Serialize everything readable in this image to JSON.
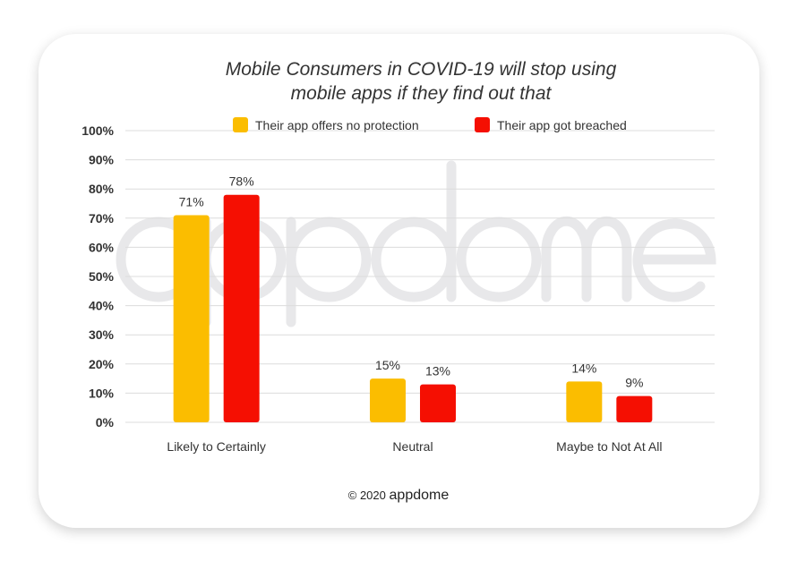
{
  "chart_data": {
    "type": "bar",
    "title_lines": [
      "Mobile Consumers in COVID-19 will stop using",
      "mobile apps if they find out that"
    ],
    "categories": [
      "Likely to Certainly",
      "Neutral",
      "Maybe to Not At All"
    ],
    "series": [
      {
        "name": "Their app offers no protection",
        "color": "#FBBD00",
        "values": [
          71,
          15,
          14
        ]
      },
      {
        "name": "Their app got breached",
        "color": "#F50F02",
        "values": [
          78,
          13,
          9
        ]
      }
    ],
    "data_labels": [
      [
        "71%",
        "15%",
        "14%"
      ],
      [
        "78%",
        "13%",
        "9%"
      ]
    ],
    "ylim": [
      0,
      100
    ],
    "yticks": [
      "0%",
      "10%",
      "20%",
      "30%",
      "40%",
      "50%",
      "60%",
      "70%",
      "80%",
      "90%",
      "100%"
    ],
    "grid": true,
    "legend_position": "top-center",
    "xlabel": "",
    "ylabel": ""
  },
  "watermark": "appdome",
  "footer": {
    "copyright": "© 2020",
    "brand": "appdome"
  }
}
